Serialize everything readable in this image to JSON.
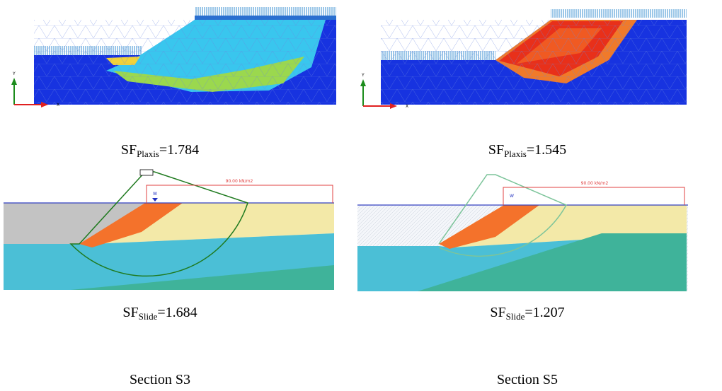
{
  "panels": [
    {
      "label": "SF",
      "subscript": "Plaxis",
      "value": "=1.784"
    },
    {
      "label": "SF",
      "subscript": "Plaxis",
      "value": "=1.545"
    },
    {
      "label": "SF",
      "subscript": "Slide",
      "value": "=1.684"
    },
    {
      "label": "SF",
      "subscript": "Slide",
      "value": "=1.207"
    }
  ],
  "axis_labels": {
    "y": "Y",
    "x": "X"
  },
  "load_labels": [
    "90.00 kN/m2",
    "90.00 kN/m2"
  ],
  "water_label": "W",
  "sections": [
    "Section S3",
    "Section S5"
  ]
}
